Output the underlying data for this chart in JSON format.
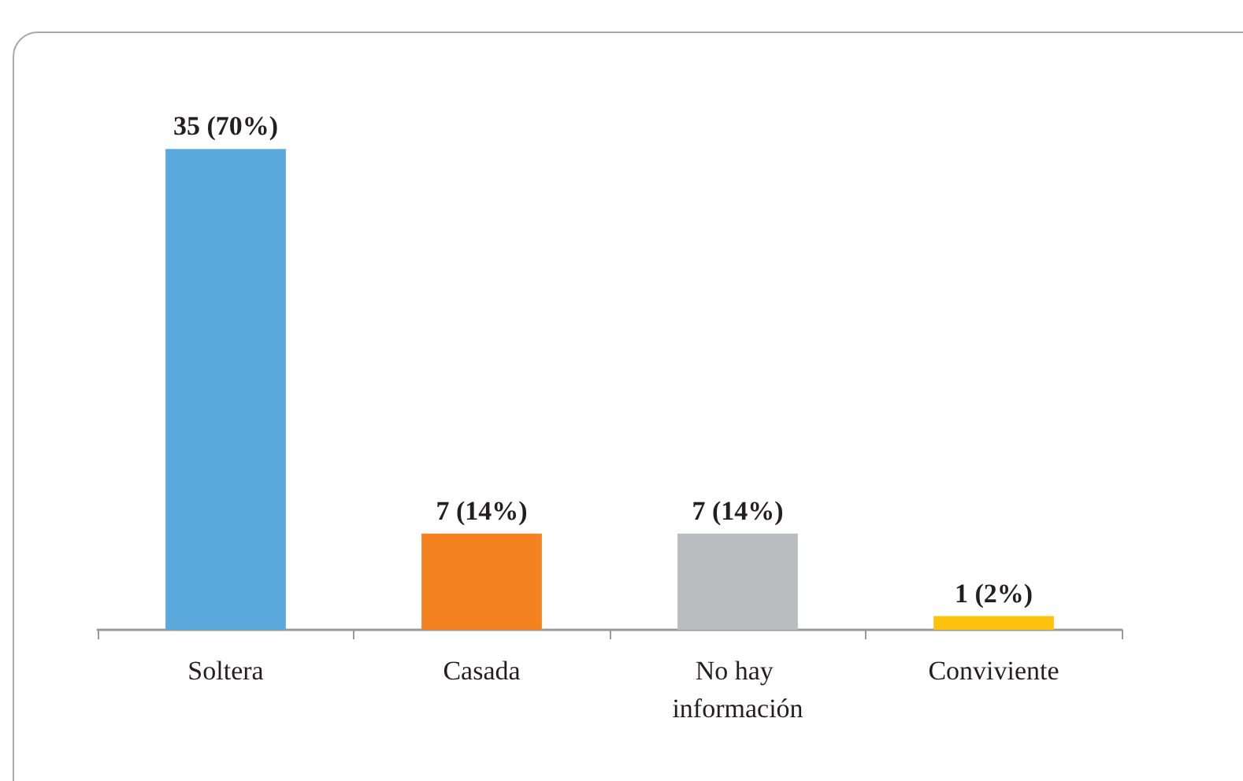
{
  "chart_data": {
    "type": "bar",
    "categories": [
      "Soltera",
      "Casada",
      "No hay información",
      "Conviviente"
    ],
    "values": [
      35,
      7,
      7,
      1
    ],
    "colors": [
      "#5ba8dc",
      "#f58220",
      "#bbbcbf",
      "#ffc20e"
    ],
    "value_labels": [
      "35 (70%)",
      "7 (14%)",
      "7 (14%)",
      "1 (2%)"
    ]
  }
}
